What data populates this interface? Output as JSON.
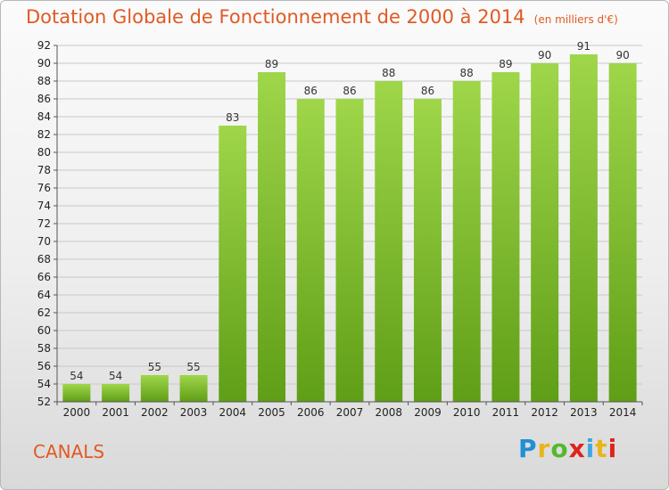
{
  "title": "Dotation Globale de Fonctionnement de 2000 à 2014",
  "subtitle": "(en milliers d'€)",
  "commune": "CANALS",
  "logo": {
    "letters": [
      "P",
      "r",
      "o",
      "x",
      "i",
      "t",
      "i"
    ],
    "colors": [
      "#1f8fd6",
      "#e8b51c",
      "#53b82e",
      "#e0221c",
      "#3ea8e0",
      "#e8b51c",
      "#e0221c"
    ]
  },
  "colors": {
    "title": "#e05a23",
    "bar_light": "#9fd64a",
    "bar_dark": "#5f9e17"
  },
  "chart_data": {
    "type": "bar",
    "title": "Dotation Globale de Fonctionnement de 2000 à 2014",
    "subtitle": "(en milliers d'€)",
    "categories": [
      "2000",
      "2001",
      "2002",
      "2003",
      "2004",
      "2005",
      "2006",
      "2007",
      "2008",
      "2009",
      "2010",
      "2011",
      "2012",
      "2013",
      "2014"
    ],
    "values": [
      54,
      54,
      55,
      55,
      83,
      89,
      86,
      86,
      88,
      86,
      88,
      89,
      90,
      91,
      90
    ],
    "ylim": [
      52,
      92
    ],
    "yticks": [
      52,
      54,
      56,
      58,
      60,
      62,
      64,
      66,
      68,
      70,
      72,
      74,
      76,
      78,
      80,
      82,
      84,
      86,
      88,
      90,
      92
    ],
    "grid": true,
    "data_labels": true
  }
}
